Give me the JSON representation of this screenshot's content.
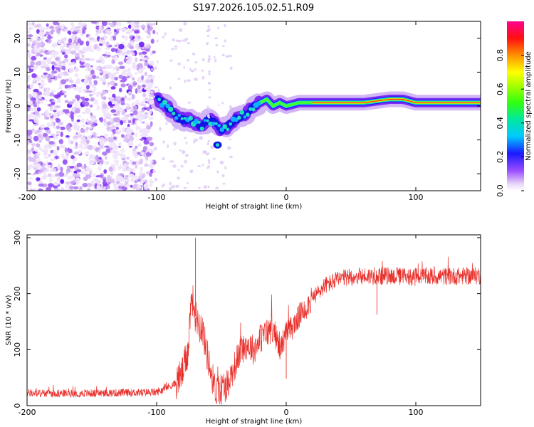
{
  "title": "S197.2026.105.02.51.R09",
  "chart_data": [
    {
      "type": "heatmap",
      "xlabel": "Height of straight line (km)",
      "ylabel": "Frequency (Hz)",
      "xlim": [
        -200,
        150
      ],
      "ylim": [
        -25,
        25
      ],
      "x_ticks": [
        -200,
        -100,
        0,
        100
      ],
      "y_ticks": [
        -20,
        -10,
        0,
        10,
        20
      ],
      "ridge": {
        "x": [
          -100,
          -95,
          -90,
          -85,
          -80,
          -75,
          -70,
          -65,
          -60,
          -55,
          -50,
          -45,
          -40,
          -35,
          -30,
          -25,
          -20,
          -15,
          -10,
          -5,
          0,
          10,
          20,
          40,
          60,
          80,
          90,
          100,
          120,
          150
        ],
        "y": [
          2,
          1,
          -1,
          -3,
          -4,
          -4,
          -5,
          -6,
          -4,
          -5,
          -7,
          -6,
          -4,
          -3,
          -2,
          0,
          1,
          2,
          0,
          1,
          0,
          1,
          1,
          1,
          1,
          2,
          2,
          1,
          1,
          1
        ]
      },
      "noise_region": [
        -200,
        -102
      ],
      "colorbar": {
        "label": "Normalized spectral amplitude",
        "ticks": [
          0.0,
          0.2,
          0.4,
          0.6,
          0.8
        ],
        "tick_labels": [
          "0.0",
          "0.2",
          "0.4",
          "0.6",
          "0.8"
        ],
        "range": [
          0,
          1
        ]
      }
    },
    {
      "type": "line",
      "xlabel": "Height of straight line (km)",
      "ylabel": "SNR (10 * v/v)",
      "xlim": [
        -200,
        150
      ],
      "ylim": [
        0,
        305
      ],
      "x_ticks": [
        -200,
        -100,
        0,
        100
      ],
      "y_ticks": [
        0,
        100,
        200,
        300
      ],
      "color": "#e8302b",
      "trend": {
        "x": [
          -200,
          -150,
          -100,
          -85,
          -80,
          -76,
          -73,
          -70,
          -65,
          -60,
          -55,
          -50,
          -45,
          -40,
          -35,
          -30,
          -25,
          -20,
          -15,
          -10,
          -5,
          0,
          5,
          10,
          20,
          30,
          40,
          50,
          70,
          100,
          150
        ],
        "y": [
          22,
          22,
          24,
          40,
          60,
          95,
          200,
          160,
          140,
          80,
          30,
          30,
          40,
          70,
          100,
          110,
          100,
          120,
          130,
          140,
          100,
          130,
          140,
          160,
          190,
          215,
          225,
          230,
          232,
          230,
          232
        ]
      },
      "notable_points": [
        {
          "x": -70,
          "y": 300
        },
        {
          "x": 70,
          "y": 163
        },
        {
          "x": 0,
          "y": 48
        }
      ]
    }
  ]
}
